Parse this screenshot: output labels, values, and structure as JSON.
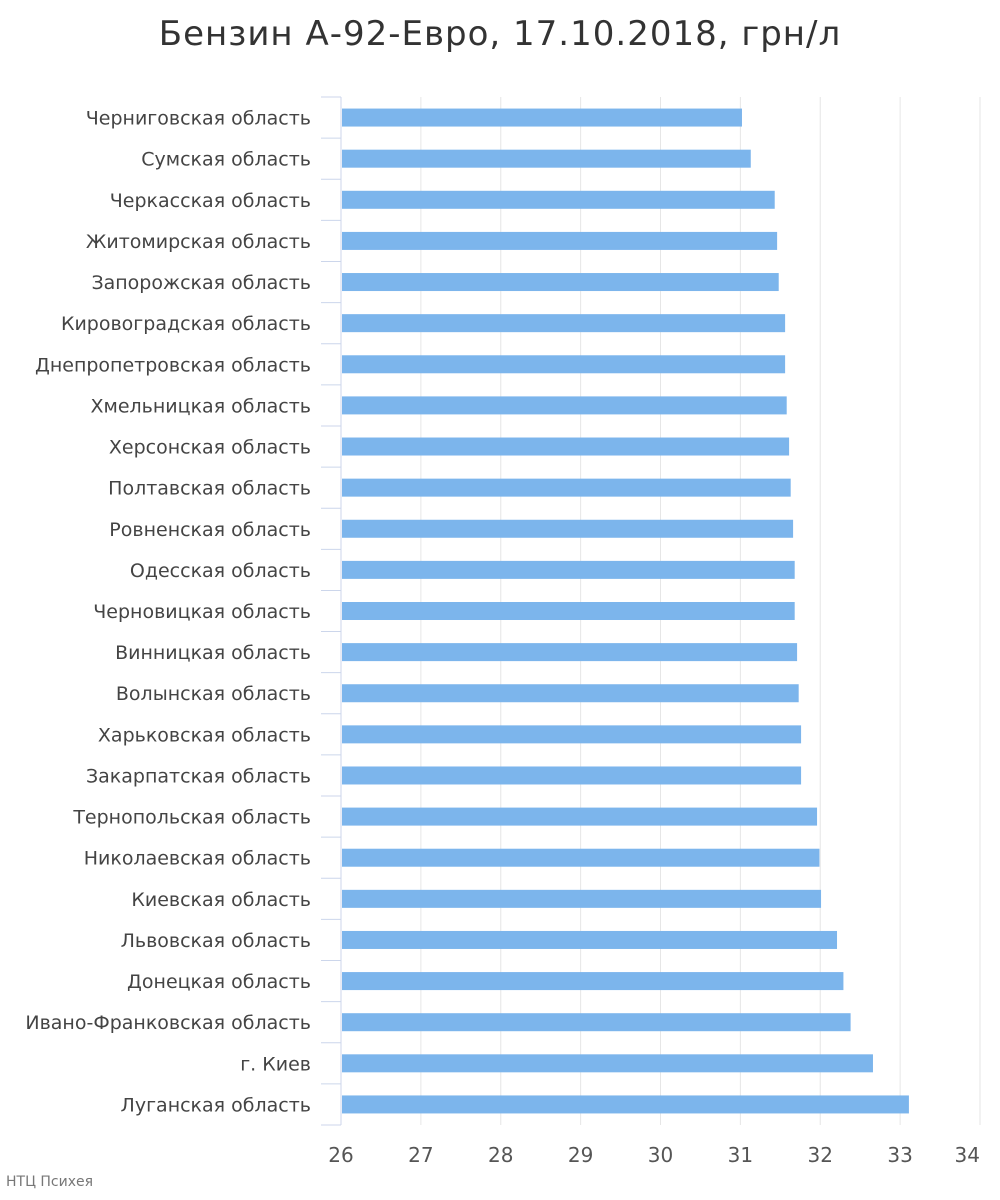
{
  "chart_data": {
    "type": "bar",
    "orientation": "horizontal",
    "title": "Бензин А-92-Евро, 17.10.2018, грн/л",
    "xlabel": "",
    "ylabel": "",
    "xlim": [
      26,
      34
    ],
    "ticks": [
      26,
      27,
      28,
      29,
      30,
      31,
      32,
      33,
      34
    ],
    "grid": true,
    "legend": "none",
    "bar_color": "#7cb5ec",
    "categories": [
      "Черниговская область",
      "Сумская область",
      "Черкасская область",
      "Житомирская область",
      "Запорожская область",
      "Кировоградская область",
      "Днепропетровская область",
      "Хмельницкая область",
      "Херсонская область",
      "Полтавская область",
      "Ровненская область",
      "Одесская область",
      "Черновицкая область",
      "Винницкая область",
      "Волынская область",
      "Харьковская область",
      "Закарпатская область",
      "Тернопольская область",
      "Николаевская область",
      "Киевская область",
      "Львовская область",
      "Донецкая область",
      "Ивано-Франковская область",
      "г. Киев",
      "Луганская область"
    ],
    "values": [
      31.02,
      31.13,
      31.43,
      31.46,
      31.48,
      31.56,
      31.56,
      31.58,
      31.61,
      31.63,
      31.66,
      31.68,
      31.68,
      31.71,
      31.73,
      31.76,
      31.76,
      31.96,
      31.99,
      32.01,
      32.21,
      32.29,
      32.38,
      32.66,
      33.11
    ]
  },
  "credits": "НТЦ Психея"
}
